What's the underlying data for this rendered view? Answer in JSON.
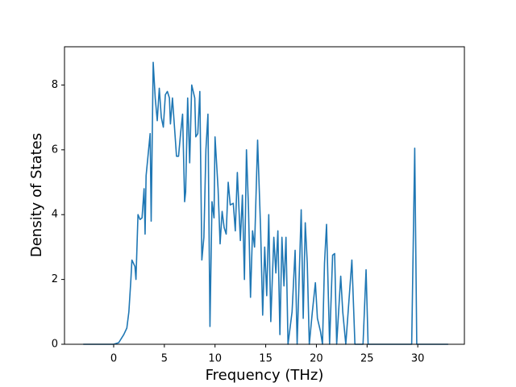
{
  "chart_data": {
    "type": "line",
    "xlabel": "Frequency (THz)",
    "ylabel": "Density of States",
    "xlim": [
      -4.85,
      34.6
    ],
    "ylim": [
      0,
      9.18
    ],
    "xticks": [
      0,
      5,
      10,
      15,
      20,
      25,
      30
    ],
    "yticks": [
      0,
      2,
      4,
      6,
      8
    ],
    "x": [
      -3,
      0,
      0.5,
      1,
      1.3,
      1.5,
      1.7,
      1.8,
      2.1,
      2.2,
      2.4,
      2.6,
      2.8,
      3.0,
      3.1,
      3.2,
      3.6,
      3.7,
      3.9,
      4.1,
      4.3,
      4.5,
      4.7,
      4.9,
      5.1,
      5.3,
      5.5,
      5.6,
      5.8,
      6.0,
      6.2,
      6.4,
      6.6,
      6.8,
      7.0,
      7.1,
      7.3,
      7.5,
      7.7,
      8.0,
      8.1,
      8.3,
      8.5,
      8.7,
      8.9,
      9.1,
      9.3,
      9.5,
      9.7,
      9.9,
      10.0,
      10.3,
      10.5,
      10.7,
      10.9,
      11.1,
      11.3,
      11.5,
      11.8,
      12.0,
      12.2,
      12.5,
      12.7,
      12.9,
      13.1,
      13.3,
      13.5,
      13.7,
      13.9,
      14.2,
      14.5,
      14.7,
      14.9,
      15.1,
      15.3,
      15.5,
      15.8,
      16.0,
      16.2,
      16.4,
      16.6,
      16.8,
      17.0,
      17.2,
      17.6,
      17.9,
      18.1,
      18.5,
      18.7,
      18.9,
      19.1,
      19.3,
      19.6,
      19.9,
      20.1,
      20.4,
      20.6,
      20.8,
      21.0,
      21.3,
      21.6,
      21.8,
      22.0,
      22.4,
      22.6,
      22.9,
      23.2,
      23.5,
      23.8,
      24.6,
      24.9,
      25.1,
      29.4,
      29.7,
      29.9,
      33
    ],
    "series": [
      {
        "color": "#1f77b4",
        "values": [
          0,
          0,
          0.05,
          0.3,
          0.5,
          1.0,
          2.0,
          2.6,
          2.4,
          2.0,
          4.0,
          3.85,
          3.9,
          4.8,
          3.4,
          5.2,
          6.5,
          3.8,
          8.7,
          7.6,
          6.9,
          7.9,
          7.0,
          6.7,
          7.7,
          7.8,
          7.6,
          6.8,
          7.6,
          6.7,
          5.8,
          5.8,
          6.5,
          7.1,
          4.4,
          4.7,
          7.6,
          5.6,
          8.0,
          7.6,
          6.4,
          6.5,
          7.8,
          2.6,
          3.3,
          6.0,
          7.1,
          0.55,
          4.4,
          3.9,
          6.4,
          4.8,
          3.1,
          4.1,
          3.6,
          3.4,
          5.0,
          4.3,
          4.35,
          3.5,
          5.3,
          3.2,
          4.6,
          2.0,
          6.0,
          4.2,
          1.45,
          3.5,
          3.0,
          6.3,
          3.5,
          0.9,
          3.0,
          1.5,
          4.0,
          0.7,
          3.3,
          2.2,
          3.5,
          0.3,
          3.3,
          1.8,
          3.3,
          0,
          1.0,
          2.9,
          0,
          4.15,
          0.8,
          3.75,
          2.5,
          0,
          1.0,
          1.9,
          0.8,
          0.4,
          0,
          2.5,
          3.7,
          0,
          2.75,
          2.8,
          0,
          2.1,
          1.0,
          0,
          1.3,
          2.6,
          0,
          0,
          2.3,
          0,
          0,
          6.05,
          0,
          0
        ]
      }
    ]
  }
}
